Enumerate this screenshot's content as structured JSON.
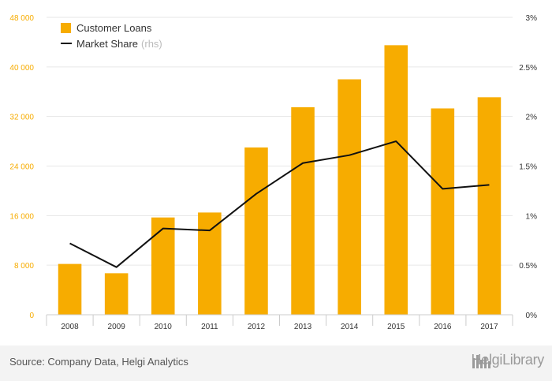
{
  "chart_data": {
    "type": "bar",
    "categories": [
      "2008",
      "2009",
      "2010",
      "2011",
      "2012",
      "2013",
      "2014",
      "2015",
      "2016",
      "2017"
    ],
    "series": [
      {
        "name": "Customer Loans",
        "type": "bar",
        "axis": "left",
        "color": "#f7ac00",
        "values": [
          8200,
          6700,
          15700,
          16500,
          27000,
          33500,
          38000,
          43500,
          33300,
          35100
        ]
      },
      {
        "name": "Market Share",
        "name_suffix": "(rhs)",
        "type": "line",
        "axis": "right",
        "color": "#111111",
        "values": [
          0.72,
          0.48,
          0.87,
          0.85,
          1.22,
          1.53,
          1.61,
          1.75,
          1.27,
          1.31
        ]
      }
    ],
    "y_left": {
      "ylim": [
        0,
        48000
      ],
      "ticks": [
        0,
        8000,
        16000,
        24000,
        32000,
        40000,
        48000
      ],
      "tick_labels": [
        "0",
        "8 000",
        "16 000",
        "24 000",
        "32 000",
        "40 000",
        "48 000"
      ],
      "tick_color": "#f7ac00"
    },
    "y_right": {
      "ylim": [
        0,
        3
      ],
      "ticks": [
        0,
        0.5,
        1,
        1.5,
        2,
        2.5,
        3
      ],
      "tick_labels": [
        "0%",
        "0.5%",
        "1%",
        "1.5%",
        "2%",
        "2.5%",
        "3%"
      ]
    },
    "grid": true,
    "legend_position": "top-left"
  },
  "footer": {
    "source": "Source: Company Data, Helgi Analytics",
    "brand": "HelgiLibrary"
  }
}
